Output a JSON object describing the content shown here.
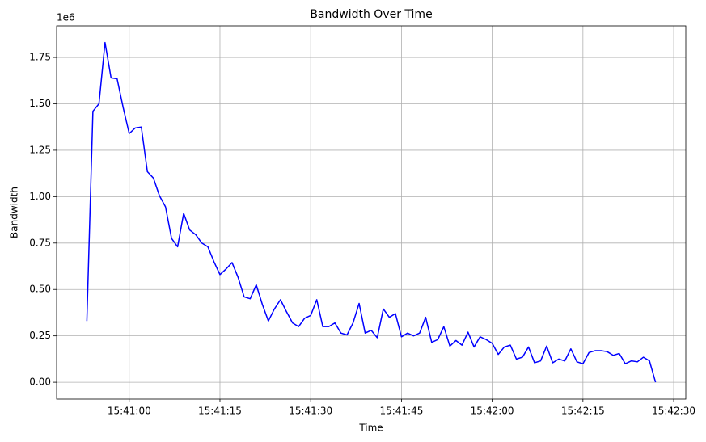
{
  "chart_data": {
    "type": "line",
    "title": "Bandwidth Over Time",
    "x_label": "Time",
    "y_label": "Bandwidth",
    "y_offset_label": "1e6",
    "x": [
      "15:40:53",
      "15:40:54",
      "15:40:55",
      "15:40:56",
      "15:40:57",
      "15:40:58",
      "15:40:59",
      "15:41:00",
      "15:41:01",
      "15:41:02",
      "15:41:03",
      "15:41:04",
      "15:41:05",
      "15:41:06",
      "15:41:07",
      "15:41:08",
      "15:41:09",
      "15:41:10",
      "15:41:11",
      "15:41:12",
      "15:41:13",
      "15:41:14",
      "15:41:15",
      "15:41:16",
      "15:41:17",
      "15:41:18",
      "15:41:19",
      "15:41:20",
      "15:41:21",
      "15:41:22",
      "15:41:23",
      "15:41:24",
      "15:41:25",
      "15:41:26",
      "15:41:27",
      "15:41:28",
      "15:41:29",
      "15:41:30",
      "15:41:31",
      "15:41:32",
      "15:41:33",
      "15:41:34",
      "15:41:35",
      "15:41:36",
      "15:41:37",
      "15:41:38",
      "15:41:39",
      "15:41:40",
      "15:41:41",
      "15:41:42",
      "15:41:43",
      "15:41:44",
      "15:41:45",
      "15:41:46",
      "15:41:47",
      "15:41:48",
      "15:41:49",
      "15:41:50",
      "15:41:51",
      "15:41:52",
      "15:41:53",
      "15:41:54",
      "15:41:55",
      "15:41:56",
      "15:41:57",
      "15:41:58",
      "15:41:59",
      "15:42:00",
      "15:42:01",
      "15:42:02",
      "15:42:03",
      "15:42:04",
      "15:42:05",
      "15:42:06",
      "15:42:07",
      "15:42:08",
      "15:42:09",
      "15:42:10",
      "15:42:11",
      "15:42:12",
      "15:42:13",
      "15:42:14",
      "15:42:15",
      "15:42:16",
      "15:42:17",
      "15:42:18",
      "15:42:19",
      "15:42:20",
      "15:42:21",
      "15:42:22",
      "15:42:23",
      "15:42:24",
      "15:42:25",
      "15:42:26",
      "15:42:27"
    ],
    "values": [
      330000,
      1460000,
      1500000,
      1830000,
      1640000,
      1635000,
      1480000,
      1340000,
      1370000,
      1375000,
      1135000,
      1100000,
      1005000,
      945000,
      775000,
      730000,
      910000,
      820000,
      795000,
      750000,
      730000,
      650000,
      580000,
      610000,
      645000,
      565000,
      460000,
      450000,
      525000,
      420000,
      330000,
      395000,
      445000,
      380000,
      320000,
      300000,
      345000,
      360000,
      445000,
      300000,
      300000,
      320000,
      265000,
      255000,
      320000,
      425000,
      265000,
      280000,
      240000,
      395000,
      350000,
      370000,
      245000,
      265000,
      250000,
      265000,
      350000,
      215000,
      230000,
      300000,
      195000,
      225000,
      200000,
      270000,
      190000,
      245000,
      230000,
      210000,
      150000,
      190000,
      200000,
      125000,
      135000,
      190000,
      105000,
      115000,
      195000,
      105000,
      125000,
      115000,
      180000,
      110000,
      100000,
      160000,
      170000,
      170000,
      165000,
      145000,
      155000,
      100000,
      115000,
      110000,
      135000,
      115000,
      0
    ],
    "color": "#0000ff",
    "xlim": [
      "15:40:48",
      "15:42:32"
    ],
    "xticks": [
      "15:41:00",
      "15:41:15",
      "15:41:30",
      "15:41:45",
      "15:42:00",
      "15:42:15",
      "15:42:30"
    ],
    "ylim": [
      -91000,
      1920000
    ],
    "yticks": [
      {
        "value": 0,
        "label": "0.00"
      },
      {
        "value": 250000,
        "label": "0.25"
      },
      {
        "value": 500000,
        "label": "0.50"
      },
      {
        "value": 750000,
        "label": "0.75"
      },
      {
        "value": 1000000,
        "label": "1.00"
      },
      {
        "value": 1250000,
        "label": "1.25"
      },
      {
        "value": 1500000,
        "label": "1.50"
      },
      {
        "value": 1750000,
        "label": "1.75"
      }
    ],
    "grid": true
  }
}
